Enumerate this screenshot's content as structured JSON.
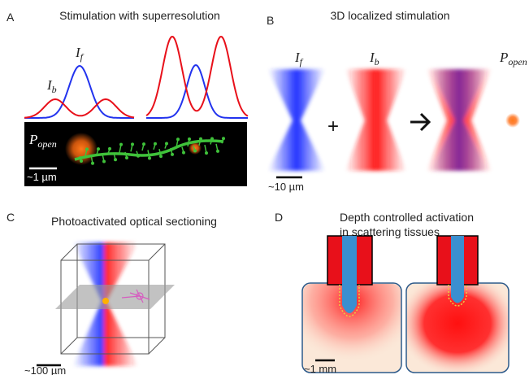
{
  "panel_a": {
    "label": "A",
    "title": "Stimulation with superresolution",
    "i_b": {
      "base": "I",
      "sub": "b"
    },
    "i_f": {
      "base": "I",
      "sub": "f"
    },
    "p_open": {
      "base": "P",
      "sub": "open"
    },
    "scale_bar": "~1 µm"
  },
  "panel_b": {
    "label": "B",
    "title": "3D localized stimulation",
    "i_f": {
      "base": "I",
      "sub": "f"
    },
    "i_b": {
      "base": "I",
      "sub": "b"
    },
    "p_open": {
      "base": "P",
      "sub": "open"
    },
    "plus": "+",
    "scale_bar": "~10 µm"
  },
  "panel_c": {
    "label": "C",
    "title": "Photoactivated optical sectioning",
    "scale_bar": "~100 µm"
  },
  "panel_d": {
    "label": "D",
    "title_lines": [
      "Depth controlled activation",
      "in scattering tissues"
    ],
    "scale_bar": "~1 mm"
  }
}
